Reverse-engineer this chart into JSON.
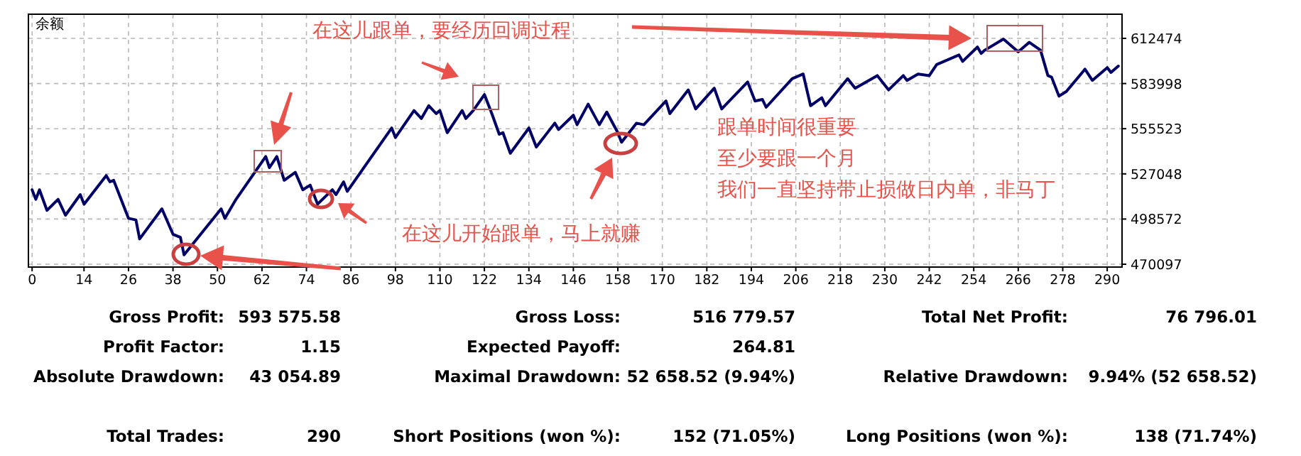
{
  "chart_data": [
    {
      "type": "line",
      "x": [
        0,
        1,
        2,
        4,
        7,
        9,
        13,
        14,
        20,
        21,
        22,
        26,
        28,
        29,
        35,
        38,
        40,
        41,
        51,
        52,
        55,
        63,
        64,
        66,
        68,
        71,
        73,
        75,
        77,
        81,
        82,
        84,
        85,
        97,
        98,
        103,
        105,
        107,
        109,
        110,
        112,
        116,
        117,
        119,
        122,
        124,
        126,
        127,
        129,
        134,
        136,
        141,
        142,
        146,
        147,
        150,
        153,
        155,
        158,
        159,
        163,
        165,
        171,
        172,
        177,
        179,
        184,
        186,
        193,
        195,
        197,
        198,
        205,
        208,
        210,
        213,
        214,
        220,
        222,
        228,
        231,
        235,
        236,
        239,
        242,
        244,
        250,
        251,
        255,
        256,
        257,
        262,
        266,
        268,
        269,
        272,
        274,
        275,
        277,
        279,
        284,
        286,
        290,
        291,
        293
      ],
      "series": [
        {
          "name": "余额",
          "color": "#000066",
          "values": [
            517000,
            511000,
            517000,
            504000,
            511000,
            501000,
            514000,
            508000,
            526000,
            522000,
            523000,
            499000,
            498000,
            486000,
            505000,
            489000,
            487000,
            476000,
            505000,
            499000,
            511000,
            538000,
            531000,
            538000,
            523000,
            528000,
            517000,
            520000,
            508000,
            517000,
            514000,
            522000,
            516000,
            556000,
            550000,
            567000,
            562000,
            570000,
            565000,
            567000,
            553000,
            567000,
            562000,
            567000,
            577000,
            565000,
            552000,
            553000,
            540000,
            556000,
            544000,
            559000,
            555000,
            564000,
            558000,
            571000,
            558000,
            566000,
            553000,
            547000,
            559000,
            558000,
            573000,
            565000,
            580000,
            568000,
            581000,
            568000,
            585000,
            573000,
            574000,
            569000,
            587000,
            590000,
            570000,
            575000,
            570000,
            587000,
            581000,
            589000,
            580000,
            589000,
            586000,
            590000,
            589000,
            596000,
            602000,
            598000,
            607000,
            603000,
            605000,
            612000,
            604000,
            608000,
            610000,
            605000,
            589000,
            588000,
            576000,
            579000,
            593000,
            586000,
            594000,
            591000,
            595000
          ]
        }
      ],
      "xlim": [
        -1,
        294
      ],
      "xticks": [
        0,
        14,
        26,
        38,
        50,
        62,
        74,
        86,
        98,
        110,
        122,
        134,
        146,
        158,
        170,
        182,
        194,
        206,
        218,
        230,
        242,
        254,
        266,
        278,
        290
      ],
      "ylim": [
        468300,
        627700
      ],
      "yticks": [
        470097,
        498572,
        527048,
        555523,
        583998,
        612474
      ],
      "grid": true,
      "line_style": "solid",
      "marker": "none",
      "legend": "top left",
      "annotations": [
        "在这儿跟单，要经历回调过程",
        "在这儿开始跟单，马上就赚",
        "跟单时间很重要",
        "至少要跟一个月",
        "我们一直坚持带止损做日内单，非马丁"
      ]
    },
    {
      "type": "other",
      "cells": [
        [
          "Gross Profit:",
          "593 575.58",
          "Gross Loss:",
          "516 779.57",
          "Total Net Profit:",
          "76 796.01"
        ],
        [
          "Profit Factor:",
          "1.15",
          "Expected Payoff:",
          "264.81",
          null,
          null
        ],
        [
          "Absolute Drawdown:",
          "43 054.89",
          "Maximal Drawdown:",
          "52 658.52 (9.94%)",
          "Relative Drawdown:",
          "9.94% (52 658.52)"
        ],
        [
          null,
          null,
          null,
          null,
          null,
          null
        ],
        [
          "Total Trades:",
          "290",
          "Short Positions (won %):",
          "152 (71.05%)",
          "Long Positions (won %):",
          "138 (71.74%)"
        ]
      ]
    }
  ]
}
